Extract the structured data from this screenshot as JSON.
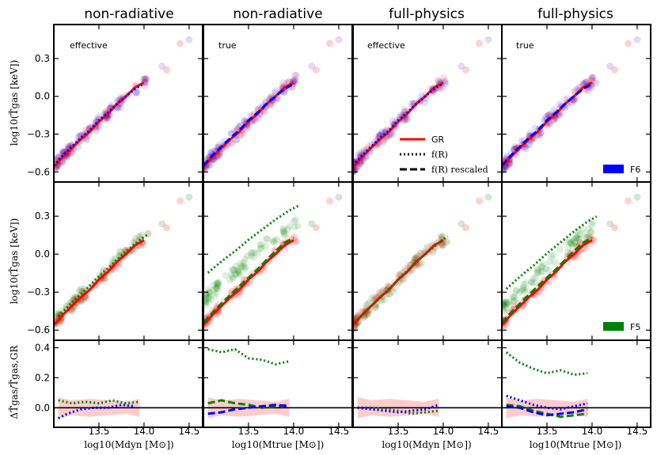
{
  "chart_data": {
    "type": "scatter",
    "column_titles": [
      "non-radiative",
      "non-radiative",
      "full-physics",
      "full-physics"
    ],
    "panel_labels": [
      "effective",
      "true",
      "effective",
      "true"
    ],
    "x_axis": {
      "range": [
        13.0,
        14.65
      ],
      "ticks": [
        13.5,
        14.0,
        14.5
      ],
      "tick_labels": [
        "13.5",
        "14.0",
        "14.5"
      ],
      "xlabels": [
        "log10(Mdyn [M⊙])",
        "log10(Mtrue [M⊙])",
        "log10(Mdyn [M⊙])",
        "log10(Mtrue [M⊙])"
      ]
    },
    "y_axis_top": {
      "range": [
        -0.68,
        0.57
      ],
      "ticks": [
        -0.6,
        -0.3,
        0.0,
        0.3
      ],
      "tick_labels": [
        "−0.6",
        "−0.3",
        "0.0",
        "0.3"
      ],
      "ylabel": "log10(T̄gas [keV])"
    },
    "y_axis_bottom": {
      "range": [
        -0.13,
        0.45
      ],
      "ticks": [
        0.0,
        0.2,
        0.4
      ],
      "tick_labels": [
        "0.0",
        "0.2",
        "0.4"
      ],
      "ylabel": "ΔT̄gas/T̄gas,GR"
    },
    "legend": {
      "lines": [
        {
          "label": "GR",
          "style": "solid",
          "color": "#ff0000"
        },
        {
          "label": "f(R)",
          "style": "dotted",
          "color": "#000000"
        },
        {
          "label": "f(R) rescaled",
          "style": "dashed",
          "color": "#000000"
        }
      ],
      "models": [
        {
          "label": "F6",
          "color": "#0000ff"
        },
        {
          "label": "F5",
          "color": "#008000"
        }
      ]
    },
    "colors": {
      "gr": "#ff0000",
      "f6": "#0000ff",
      "f5": "#008000",
      "band": "#ffb6b6"
    },
    "scatter_alpha": 0.12,
    "gr_median": {
      "x": [
        13.0,
        13.1,
        13.2,
        13.3,
        13.4,
        13.5,
        13.6,
        13.7,
        13.8,
        13.9,
        14.0
      ],
      "y": [
        -0.56,
        -0.48,
        -0.41,
        -0.34,
        -0.28,
        -0.2,
        -0.14,
        -0.06,
        0.0,
        0.07,
        0.11
      ]
    },
    "top_row": {
      "f6_curve": {
        "x": [
          13.0,
          13.1,
          13.2,
          13.3,
          13.4,
          13.5,
          13.6,
          13.7,
          13.8,
          13.9,
          14.0
        ],
        "y": [
          -0.55,
          -0.47,
          -0.4,
          -0.33,
          -0.27,
          -0.19,
          -0.13,
          -0.06,
          0.0,
          0.06,
          0.1
        ]
      }
    },
    "middle_row": {
      "f5_dotted_shift": [
        0.03,
        0.38,
        0.0,
        0.25
      ],
      "f5_dotted_x": [
        13.05,
        13.2,
        13.35,
        13.5,
        13.65,
        13.8,
        13.95,
        14.05
      ],
      "f5_dashed_x": [
        13.0,
        13.15,
        13.3,
        13.45,
        13.6,
        13.75,
        13.9,
        14.0
      ]
    },
    "bottom_row": {
      "band_x": [
        13.05,
        13.2,
        13.4,
        13.6,
        13.8,
        13.95
      ],
      "band_lo": [
        -0.07,
        -0.05,
        -0.06,
        -0.05,
        -0.04,
        -0.06
      ],
      "band_hi": [
        0.07,
        0.05,
        0.06,
        0.05,
        0.04,
        0.06
      ],
      "panels": [
        {
          "f6_dotted": {
            "x": [
              13.05,
              13.15,
              13.3,
              13.45,
              13.6,
              13.75,
              13.9
            ],
            "y": [
              -0.07,
              -0.04,
              -0.01,
              0.0,
              0.0,
              0.02,
              0.01
            ]
          },
          "f5_dotted": {
            "x": [
              13.05,
              13.2,
              13.35,
              13.5,
              13.65,
              13.8,
              13.95
            ],
            "y": [
              0.05,
              0.03,
              0.04,
              0.03,
              0.05,
              0.03,
              0.04
            ]
          },
          "f6_dashed": null,
          "f5_dashed": null
        },
        {
          "f5_dotted": {
            "x": [
              13.05,
              13.2,
              13.35,
              13.5,
              13.65,
              13.8,
              13.95
            ],
            "y": [
              0.39,
              0.37,
              0.39,
              0.33,
              0.32,
              0.29,
              0.31
            ]
          },
          "f6_dashed": {
            "x": [
              13.05,
              13.2,
              13.35,
              13.5,
              13.65,
              13.8,
              13.95
            ],
            "y": [
              -0.04,
              -0.03,
              -0.01,
              0.0,
              0.01,
              0.02,
              0.01
            ]
          },
          "f5_dashed": {
            "x": [
              13.05,
              13.2,
              13.35,
              13.5,
              13.65,
              13.8,
              13.95
            ],
            "y": [
              0.03,
              0.05,
              0.03,
              0.02,
              0.0,
              0.01,
              0.02
            ]
          },
          "f6_dotted": null
        },
        {
          "f6_dotted": {
            "x": [
              13.05,
              13.2,
              13.35,
              13.5,
              13.65,
              13.8,
              13.95
            ],
            "y": [
              0.0,
              -0.01,
              -0.02,
              -0.03,
              -0.02,
              -0.01,
              0.02
            ]
          },
          "f5_dotted": {
            "x": [
              13.05,
              13.2,
              13.35,
              13.5,
              13.65,
              13.8,
              13.95
            ],
            "y": [
              0.0,
              0.0,
              -0.01,
              -0.02,
              -0.04,
              -0.03,
              -0.02
            ]
          },
          "f6_dashed": null,
          "f5_dashed": null
        },
        {
          "f5_dotted": {
            "x": [
              13.05,
              13.2,
              13.35,
              13.5,
              13.65,
              13.8,
              13.95
            ],
            "y": [
              0.37,
              0.3,
              0.26,
              0.23,
              0.25,
              0.22,
              0.23
            ]
          },
          "f6_dotted": {
            "x": [
              13.05,
              13.2,
              13.35,
              13.5,
              13.65,
              13.8,
              13.95
            ],
            "y": [
              0.08,
              0.05,
              0.02,
              0.0,
              -0.01,
              0.01,
              0.03
            ]
          },
          "f6_dashed": {
            "x": [
              13.05,
              13.2,
              13.35,
              13.5,
              13.65,
              13.8,
              13.95
            ],
            "y": [
              0.01,
              0.0,
              -0.03,
              -0.05,
              -0.04,
              -0.03,
              -0.01
            ]
          },
          "f5_dashed": {
            "x": [
              13.05,
              13.2,
              13.35,
              13.5,
              13.65,
              13.8,
              13.95
            ],
            "y": [
              0.02,
              0.01,
              -0.02,
              -0.04,
              -0.06,
              -0.05,
              -0.04
            ]
          }
        }
      ]
    }
  }
}
